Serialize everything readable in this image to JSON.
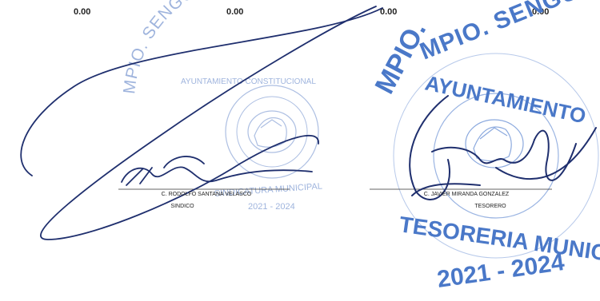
{
  "amounts": [
    "0.00",
    "0.00",
    "0.00",
    "0.00"
  ],
  "signatures": [
    {
      "name": "C. RODOLFO SANTANA VELASCO",
      "role": "SINDICO"
    },
    {
      "name": "C. JAVIER MIRANDA GONZALEZ",
      "role": "TESORERO"
    }
  ],
  "stamps": [
    {
      "top_text": "MPIO. SENGUIO, MICHOACAN",
      "sub_text": "AYUNTAMIENTO CONSTITUCIONAL",
      "bottom_text": "SINDICATURA MUNICIPAL",
      "years": "2021 - 2024"
    },
    {
      "top_text": "MPIO. SENGUIO, MICHOACAN",
      "sub_text": "AYUNTAMIENTO",
      "bottom_text": "TESORERIA MUNICIPAL",
      "years": "2021 - 2024"
    }
  ],
  "colors": {
    "stamp_light": "#8fa8d8",
    "stamp_dark": "#4a78c8",
    "ink": "#1f2f6e"
  }
}
